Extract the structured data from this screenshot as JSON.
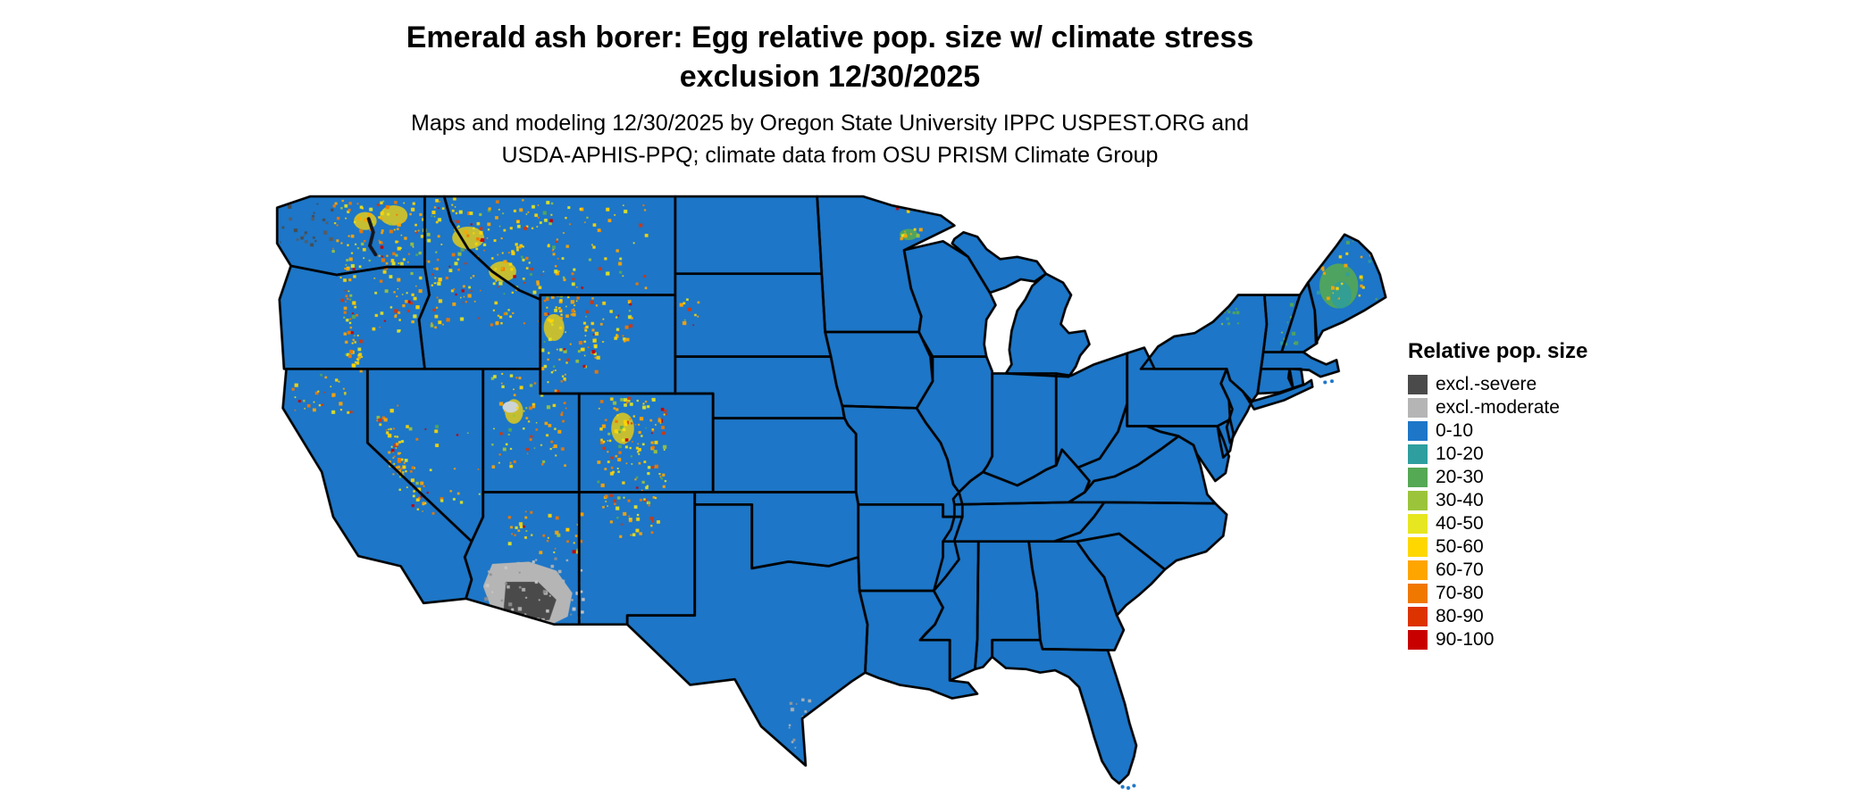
{
  "page": {
    "background": "#ffffff"
  },
  "title": {
    "line1": "Emerald ash borer: Egg relative pop. size w/ climate stress",
    "line2": "exclusion 12/30/2025"
  },
  "subtitle": {
    "line1": "Maps and modeling 12/30/2025 by Oregon State University IPPC USPEST.ORG and",
    "line2": "USDA-APHIS-PPQ; climate data from OSU PRISM Climate Group"
  },
  "legend": {
    "title": "Relative pop. size",
    "items": [
      {
        "label": "excl.-severe",
        "color": "#4a4a4a"
      },
      {
        "label": "excl.-moderate",
        "color": "#b5b5b5"
      },
      {
        "label": "0-10",
        "color": "#1d76c7"
      },
      {
        "label": "10-20",
        "color": "#2e9e9e"
      },
      {
        "label": "20-30",
        "color": "#55a854"
      },
      {
        "label": "30-40",
        "color": "#9cc43b"
      },
      {
        "label": "40-50",
        "color": "#e6e621"
      },
      {
        "label": "50-60",
        "color": "#ffd700"
      },
      {
        "label": "60-70",
        "color": "#ffa500"
      },
      {
        "label": "70-80",
        "color": "#f07800"
      },
      {
        "label": "80-90",
        "color": "#dd3300"
      },
      {
        "label": "90-100",
        "color": "#c80000"
      }
    ]
  },
  "map": {
    "region": "Contiguous United States",
    "base_fill_label": "0-10",
    "border_color": "#000000",
    "water_color": "#ffffff"
  }
}
